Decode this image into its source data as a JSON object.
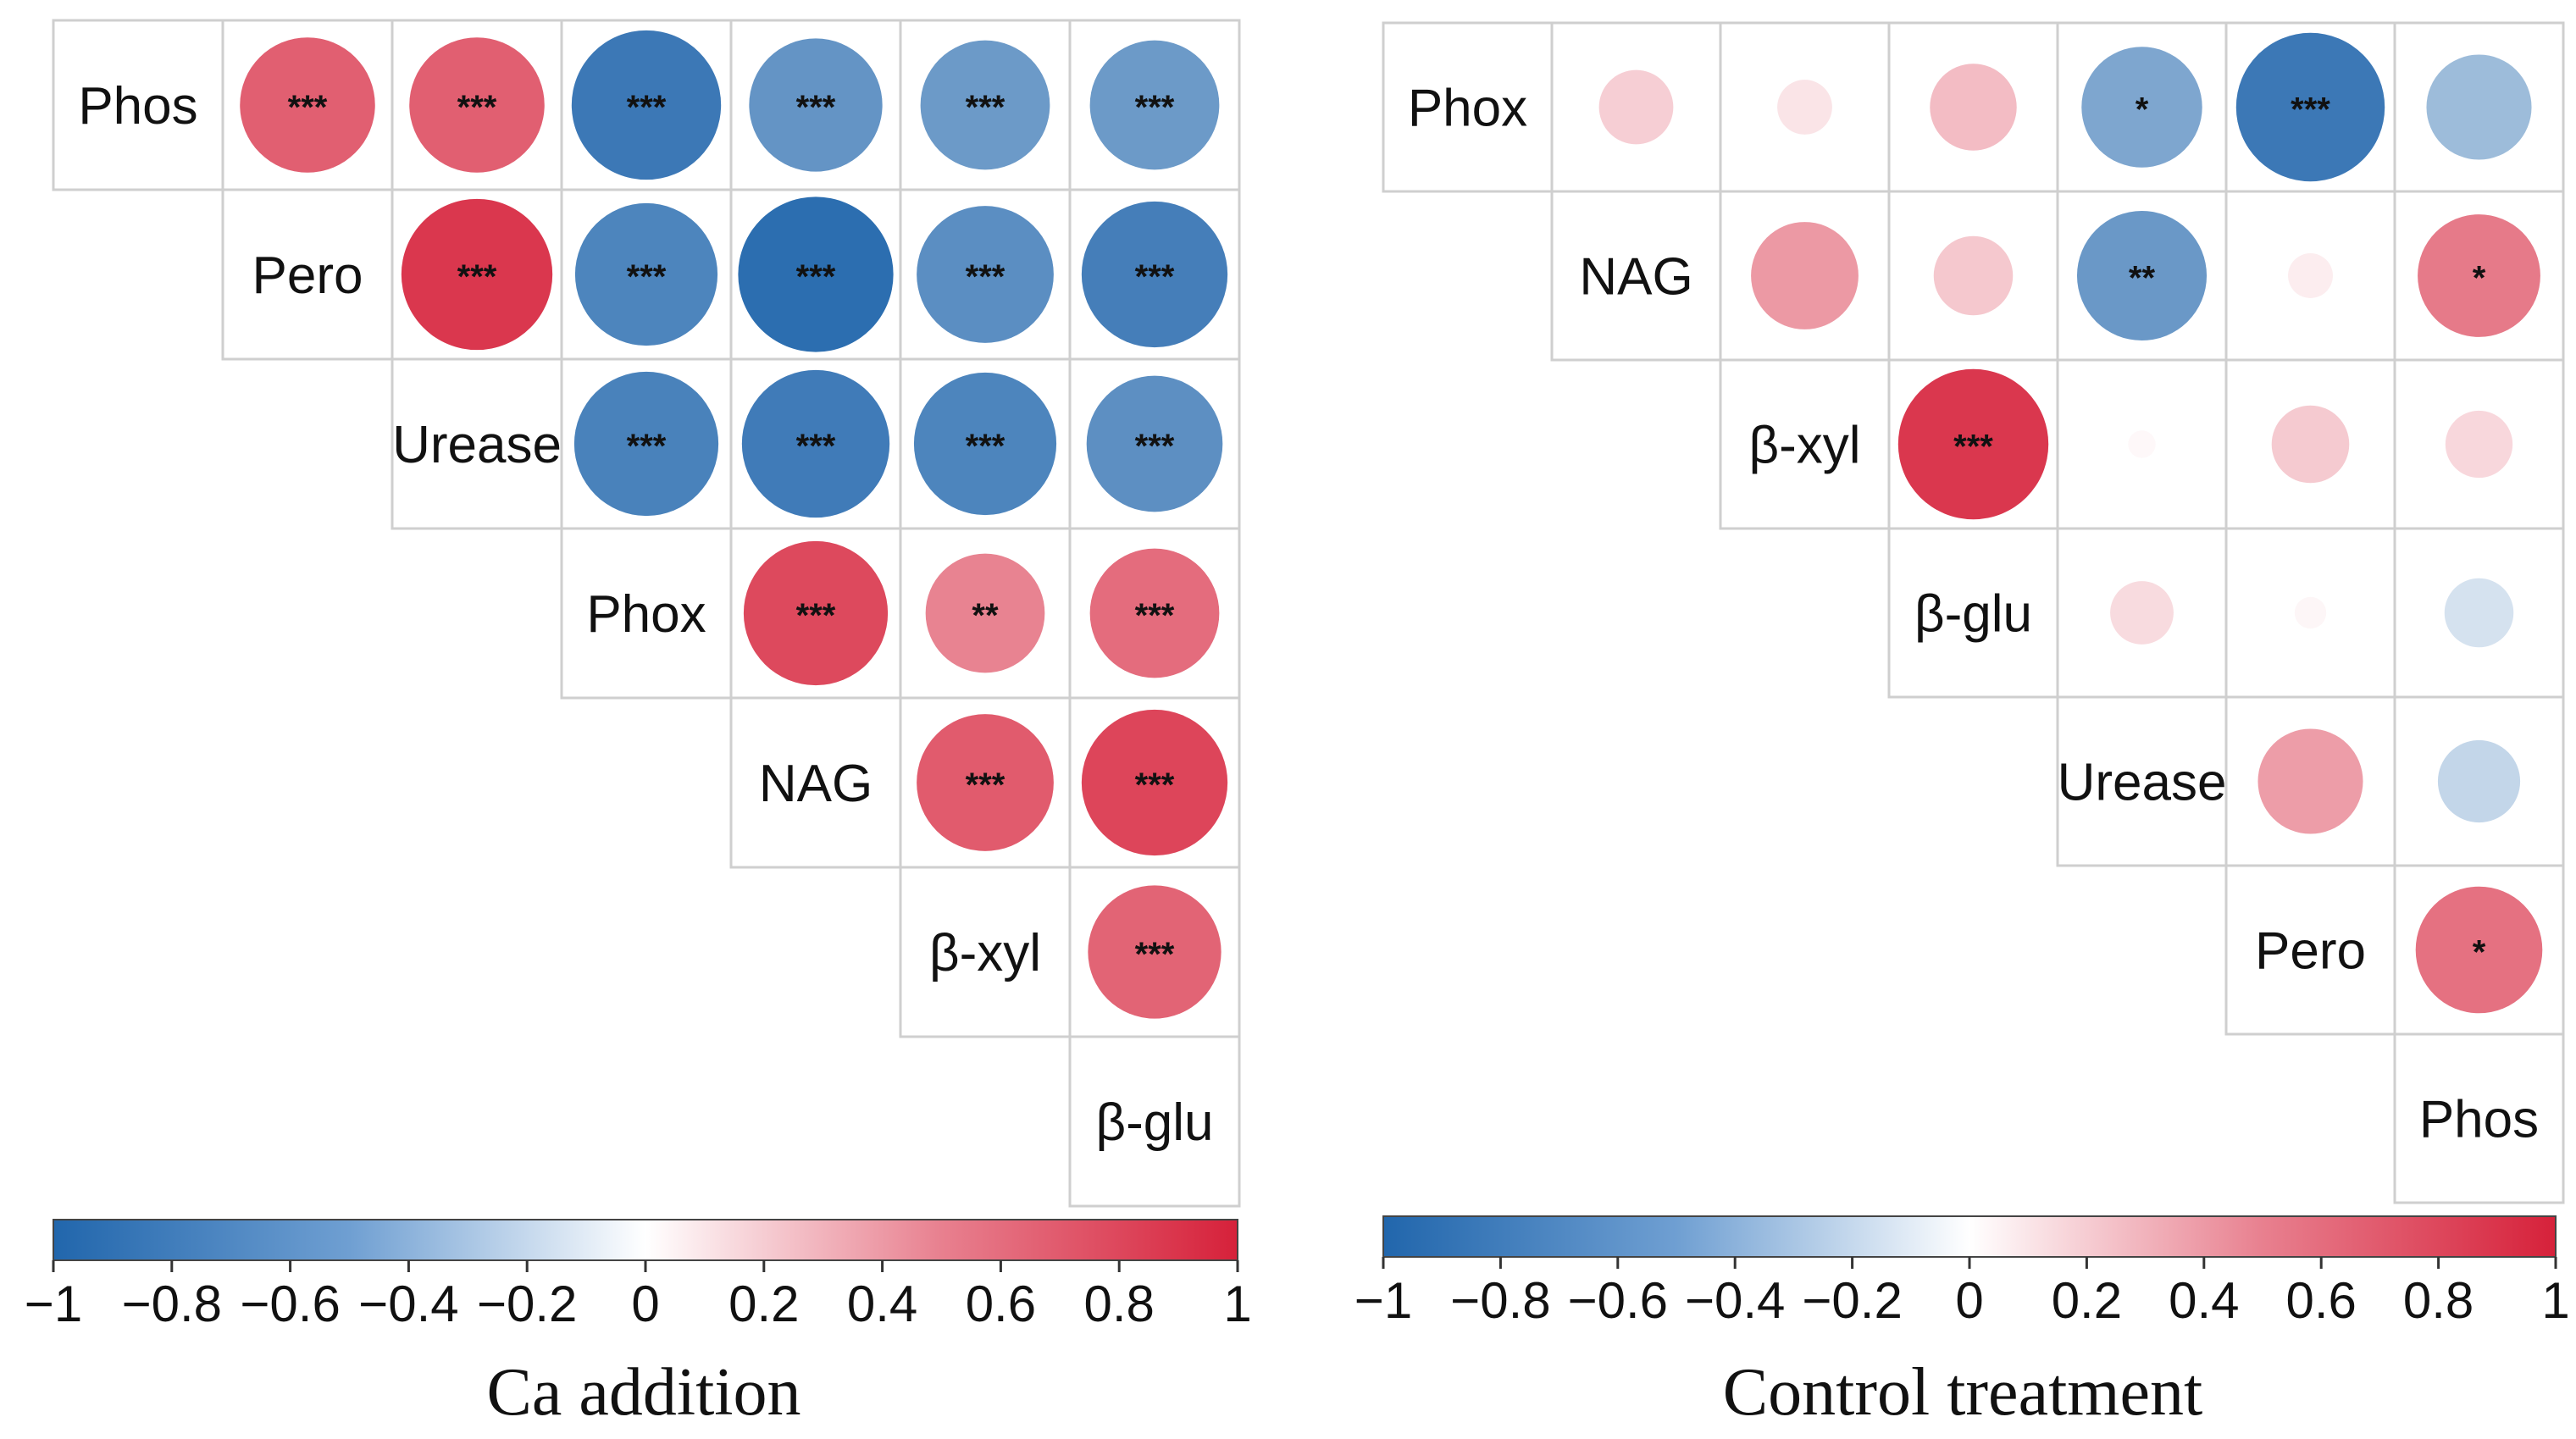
{
  "colors": {
    "negative": "#2166ac",
    "neutral": "#ffffff",
    "positive": "#d6213a",
    "grid": "#cfcfcf"
  },
  "chart_data": [
    {
      "type": "heatmap",
      "subtype": "correlogram-upper",
      "title": "Ca addition",
      "variables": [
        "Phos",
        "Pero",
        "Urease",
        "Phox",
        "NAG",
        "β-xyl",
        "β-glu"
      ],
      "color_range": [
        -1,
        1
      ],
      "colorbar_ticks": [
        "−1",
        "−0.8",
        "−0.6",
        "−0.4",
        "−0.2",
        "0",
        "0.2",
        "0.4",
        "0.6",
        "0.8",
        "1"
      ],
      "cells": [
        {
          "row": 0,
          "col": 1,
          "r": 0.72,
          "sig": "***"
        },
        {
          "row": 0,
          "col": 2,
          "r": 0.72,
          "sig": "***"
        },
        {
          "row": 0,
          "col": 3,
          "r": -0.88,
          "sig": "***"
        },
        {
          "row": 0,
          "col": 4,
          "r": -0.7,
          "sig": "***"
        },
        {
          "row": 0,
          "col": 5,
          "r": -0.66,
          "sig": "***"
        },
        {
          "row": 0,
          "col": 6,
          "r": -0.66,
          "sig": "***"
        },
        {
          "row": 1,
          "col": 2,
          "r": 0.9,
          "sig": "***"
        },
        {
          "row": 1,
          "col": 3,
          "r": -0.8,
          "sig": "***"
        },
        {
          "row": 1,
          "col": 4,
          "r": -0.95,
          "sig": "***"
        },
        {
          "row": 1,
          "col": 5,
          "r": -0.74,
          "sig": "***"
        },
        {
          "row": 1,
          "col": 6,
          "r": -0.84,
          "sig": "***"
        },
        {
          "row": 2,
          "col": 3,
          "r": -0.82,
          "sig": "***"
        },
        {
          "row": 2,
          "col": 4,
          "r": -0.86,
          "sig": "***"
        },
        {
          "row": 2,
          "col": 5,
          "r": -0.8,
          "sig": "***"
        },
        {
          "row": 2,
          "col": 6,
          "r": -0.73,
          "sig": "***"
        },
        {
          "row": 3,
          "col": 4,
          "r": 0.82,
          "sig": "***"
        },
        {
          "row": 3,
          "col": 5,
          "r": 0.56,
          "sig": "**"
        },
        {
          "row": 3,
          "col": 6,
          "r": 0.66,
          "sig": "***"
        },
        {
          "row": 4,
          "col": 5,
          "r": 0.74,
          "sig": "***"
        },
        {
          "row": 4,
          "col": 6,
          "r": 0.84,
          "sig": "***"
        },
        {
          "row": 5,
          "col": 6,
          "r": 0.7,
          "sig": "***"
        }
      ]
    },
    {
      "type": "heatmap",
      "subtype": "correlogram-upper",
      "title": "Control treatment",
      "variables": [
        "Phox",
        "NAG",
        "β-xyl",
        "β-glu",
        "Urease",
        "Pero",
        "Phos"
      ],
      "color_range": [
        -1,
        1
      ],
      "colorbar_ticks": [
        "−1",
        "−0.8",
        "−0.6",
        "−0.4",
        "−0.2",
        "0",
        "0.2",
        "0.4",
        "0.6",
        "0.8",
        "1"
      ],
      "cells": [
        {
          "row": 0,
          "col": 1,
          "r": 0.22,
          "sig": ""
        },
        {
          "row": 0,
          "col": 2,
          "r": 0.12,
          "sig": ""
        },
        {
          "row": 0,
          "col": 3,
          "r": 0.3,
          "sig": ""
        },
        {
          "row": 0,
          "col": 4,
          "r": -0.58,
          "sig": "*"
        },
        {
          "row": 0,
          "col": 5,
          "r": -0.88,
          "sig": "***"
        },
        {
          "row": 0,
          "col": 6,
          "r": -0.44,
          "sig": ""
        },
        {
          "row": 1,
          "col": 2,
          "r": 0.46,
          "sig": ""
        },
        {
          "row": 1,
          "col": 3,
          "r": 0.25,
          "sig": ""
        },
        {
          "row": 1,
          "col": 4,
          "r": -0.67,
          "sig": "**"
        },
        {
          "row": 1,
          "col": 5,
          "r": 0.08,
          "sig": ""
        },
        {
          "row": 1,
          "col": 6,
          "r": 0.6,
          "sig": "*"
        },
        {
          "row": 2,
          "col": 3,
          "r": 0.9,
          "sig": "***"
        },
        {
          "row": 2,
          "col": 4,
          "r": 0.03,
          "sig": ""
        },
        {
          "row": 2,
          "col": 5,
          "r": 0.24,
          "sig": ""
        },
        {
          "row": 2,
          "col": 6,
          "r": 0.18,
          "sig": ""
        },
        {
          "row": 3,
          "col": 4,
          "r": 0.16,
          "sig": ""
        },
        {
          "row": 3,
          "col": 5,
          "r": 0.04,
          "sig": ""
        },
        {
          "row": 3,
          "col": 6,
          "r": -0.19,
          "sig": ""
        },
        {
          "row": 4,
          "col": 5,
          "r": 0.44,
          "sig": ""
        },
        {
          "row": 4,
          "col": 6,
          "r": -0.27,
          "sig": ""
        },
        {
          "row": 5,
          "col": 6,
          "r": 0.64,
          "sig": "*"
        }
      ]
    }
  ]
}
